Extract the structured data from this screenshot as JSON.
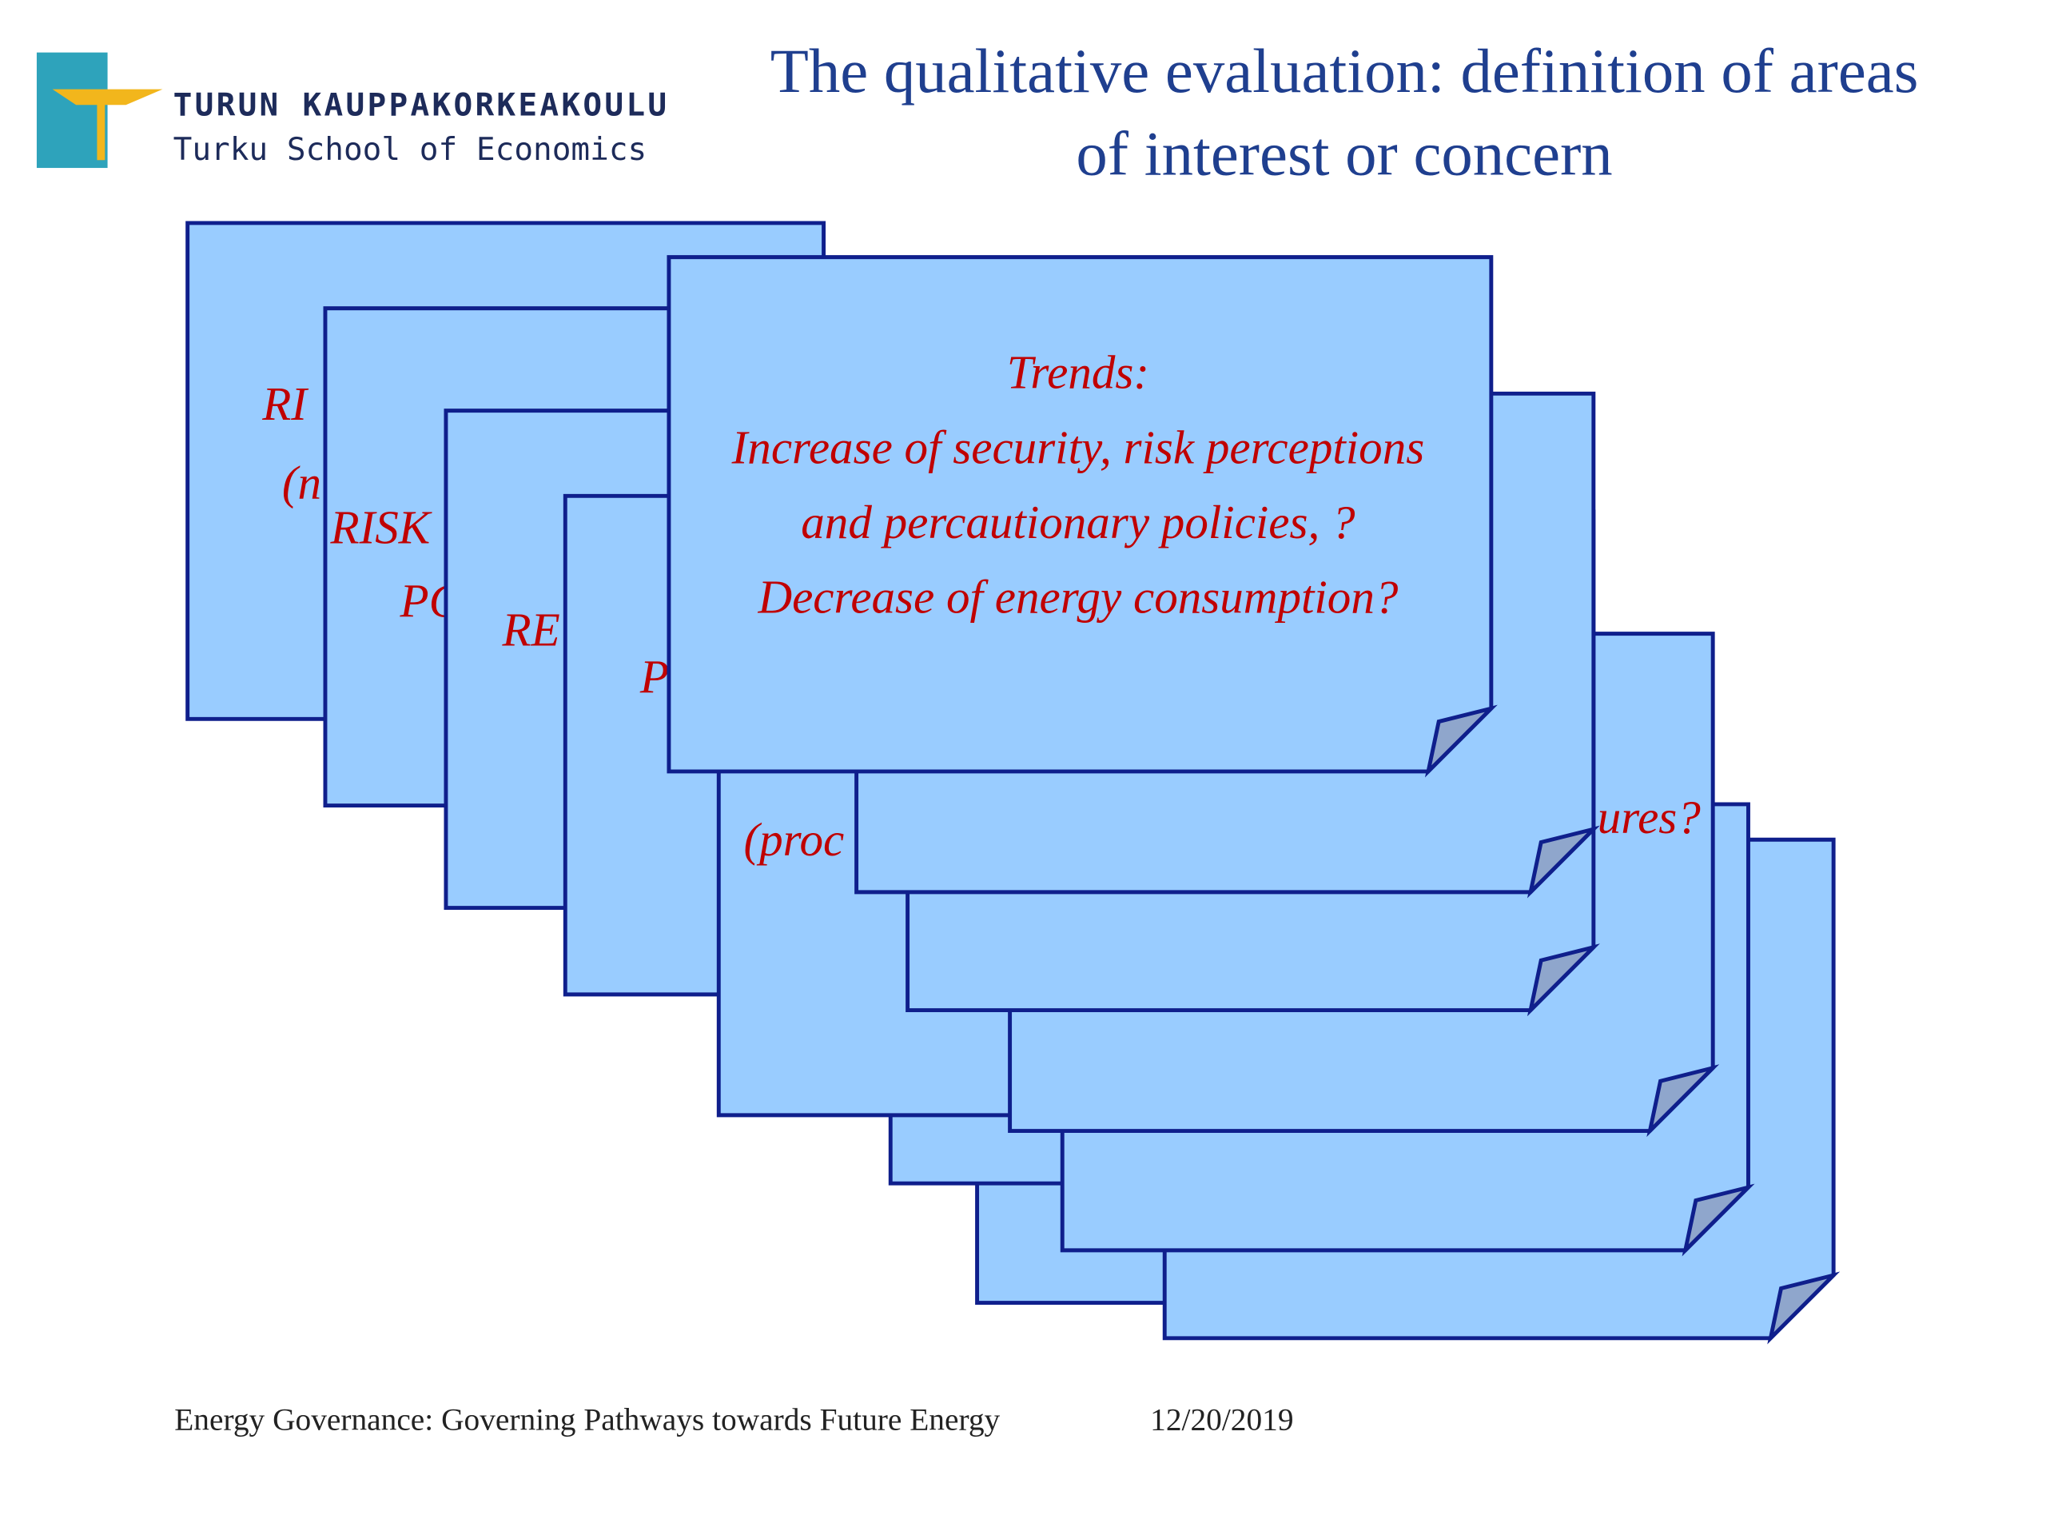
{
  "header": {
    "logo_line1": "TURUN KAUPPAKORKEAKOULU",
    "logo_line2": "Turku School of Economics",
    "title_lines": [
      "The qualitative evaluation: definition of areas",
      "of interest or concern"
    ]
  },
  "cards": [
    {
      "lines": [
        "RI",
        "(n"
      ]
    },
    {
      "lines": [
        "RISK",
        "PC"
      ]
    },
    {
      "lines": [
        "RE"
      ]
    },
    {
      "lines": [
        "P"
      ]
    },
    {
      "lines": [
        "(proc"
      ]
    },
    {
      "lines": [
        "ures?"
      ]
    }
  ],
  "trends_card": {
    "lines": [
      "Trends:",
      "Increase of security, risk perceptions",
      "and percautionary policies, ?",
      "Decrease of energy consumption?"
    ]
  },
  "footer": {
    "text": "Energy Governance: Governing Pathways towards Future Energy",
    "date": "12/20/2019"
  }
}
